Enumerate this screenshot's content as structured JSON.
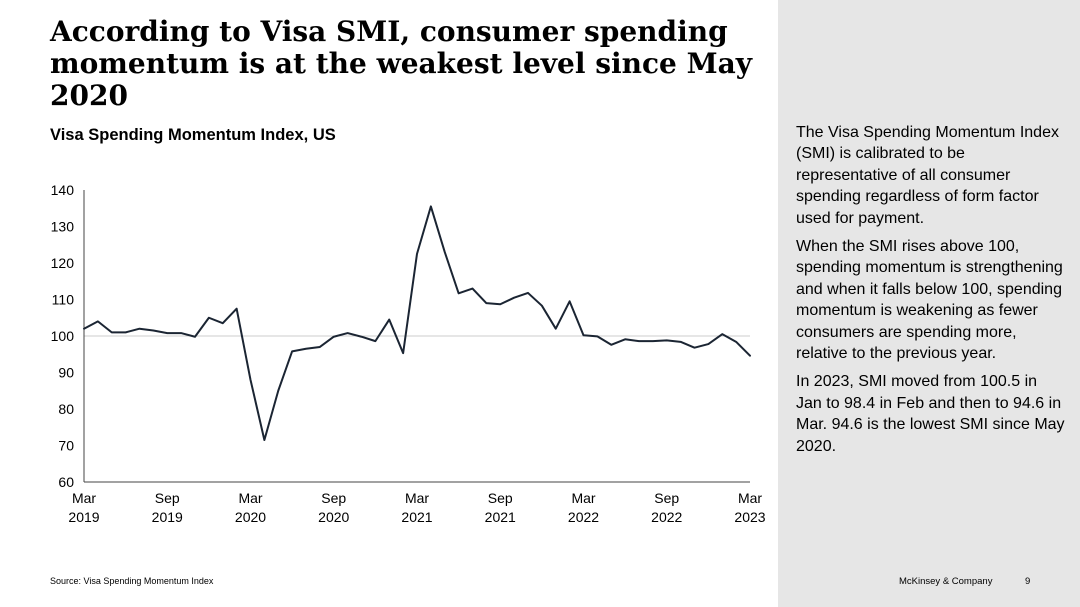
{
  "slide": {
    "title": "According to Visa SMI, consumer spending momentum is at the weakest level since May 2020",
    "source": "Source: Visa Spending Momentum Index",
    "company": "McKinsey & Company",
    "page_number": "9"
  },
  "sidebar": {
    "paragraphs": [
      "The Visa Spending Momentum Index (SMI) is calibrated to be representative of all consumer spending regardless of form factor used for payment.",
      "When the SMI rises above 100, spending momentum is strengthening and when it falls below 100, spending momentum is weakening as fewer consumers are spending more, relative to the previous year.",
      "In 2023, SMI moved from 100.5 in Jan to 98.4 in Feb and then to 94.6 in Mar. 94.6 is the lowest SMI since May 2020."
    ]
  },
  "colors": {
    "line": "#1b2533",
    "axis": "#444444",
    "gridline_100": "#cccccc",
    "panel": "#e6e6e6"
  },
  "chart_data": {
    "type": "line",
    "title": "Visa Spending Momentum Index, US",
    "xlabel": "",
    "ylabel": "",
    "ylim": [
      60,
      140
    ],
    "yticks": [
      60,
      70,
      80,
      90,
      100,
      110,
      120,
      130,
      140
    ],
    "reference_line": 100,
    "x_tick_labels": [
      {
        "index": 0,
        "month": "Mar",
        "year": "2019"
      },
      {
        "index": 6,
        "month": "Sep",
        "year": "2019"
      },
      {
        "index": 12,
        "month": "Mar",
        "year": "2020"
      },
      {
        "index": 18,
        "month": "Sep",
        "year": "2020"
      },
      {
        "index": 24,
        "month": "Mar",
        "year": "2021"
      },
      {
        "index": 30,
        "month": "Sep",
        "year": "2021"
      },
      {
        "index": 36,
        "month": "Mar",
        "year": "2022"
      },
      {
        "index": 42,
        "month": "Sep",
        "year": "2022"
      },
      {
        "index": 48,
        "month": "Mar",
        "year": "2023"
      }
    ],
    "series": [
      {
        "name": "Visa SMI",
        "values": [
          102,
          104,
          101,
          101,
          102,
          101.5,
          100.8,
          100.8,
          99.8,
          105,
          103.5,
          107.5,
          88,
          71.5,
          85,
          95.8,
          96.5,
          97,
          99.8,
          100.8,
          99.8,
          98.6,
          104.5,
          95.3,
          122.5,
          135.5,
          123,
          111.7,
          113,
          109,
          108.7,
          110.5,
          111.8,
          108.3,
          102,
          109.5,
          100.2,
          99.9,
          97.6,
          99.1,
          98.6,
          98.6,
          98.8,
          98.4,
          96.8,
          97.8,
          100.5,
          98.4,
          94.6
        ]
      }
    ]
  }
}
